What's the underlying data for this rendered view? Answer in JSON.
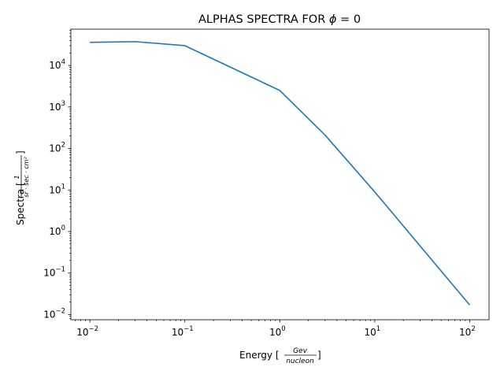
{
  "chart_data": {
    "type": "line",
    "title": "ALPHAS SPECTRA FOR",
    "title_symbol": "ϕ",
    "title_tail": " = 0",
    "xlabel": "Energy [",
    "xlabel_frac_num": "Gev",
    "xlabel_frac_den": "nucleon",
    "xlabel_close": "]",
    "ylabel": "Spectra [",
    "ylabel_frac_num": "1",
    "ylabel_frac_den": "sr · sec · cm²",
    "ylabel_close": "]",
    "x_scale": "log",
    "y_scale": "log",
    "xlim": [
      0.0063,
      160
    ],
    "ylim": [
      0.0075,
      75000
    ],
    "grid": false,
    "x_ticks": [
      {
        "base": "10",
        "exp": "−2",
        "value": 0.01
      },
      {
        "base": "10",
        "exp": "−1",
        "value": 0.1
      },
      {
        "base": "10",
        "exp": "0",
        "value": 1
      },
      {
        "base": "10",
        "exp": "1",
        "value": 10
      },
      {
        "base": "10",
        "exp": "2",
        "value": 100
      }
    ],
    "y_ticks": [
      {
        "base": "10",
        "exp": "−2",
        "value": 0.01
      },
      {
        "base": "10",
        "exp": "−1",
        "value": 0.1
      },
      {
        "base": "10",
        "exp": "0",
        "value": 1
      },
      {
        "base": "10",
        "exp": "1",
        "value": 10
      },
      {
        "base": "10",
        "exp": "2",
        "value": 100
      },
      {
        "base": "10",
        "exp": "3",
        "value": 1000
      },
      {
        "base": "10",
        "exp": "4",
        "value": 10000
      }
    ],
    "series": [
      {
        "color": "#1f77b4",
        "x": [
          0.01,
          0.03,
          0.1,
          1,
          3,
          10,
          100
        ],
        "y": [
          36000,
          37500,
          30000,
          2500,
          210,
          9,
          0.017
        ]
      }
    ]
  }
}
